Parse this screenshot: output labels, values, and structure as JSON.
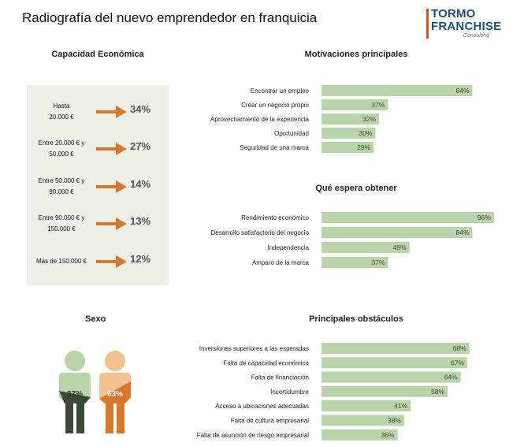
{
  "title": "Radiografía del nuevo emprendedor en franquicia",
  "logo": {
    "line1": "TORMO",
    "line2": "FRANCHISE",
    "line3": "Consulting"
  },
  "colors": {
    "bar": "#b9d4a8",
    "panel": "#ebf1e6",
    "arrow": "#d8782b",
    "female": "#d8782b",
    "female_light": "#f2c190",
    "male": "#b9d4a8",
    "male_dark": "#3b4a37"
  },
  "capacidad": {
    "title": "Capacidad Económica",
    "rows": [
      {
        "label": "Hasta\n20.000 €",
        "pct": "34%"
      },
      {
        "label": "Entre 20.000 € y\n50.000 €",
        "pct": "27%"
      },
      {
        "label": "Entre 50.000 € y\n90.000 €",
        "pct": "14%"
      },
      {
        "label": "Entre 90.000 € y\n150.000 €",
        "pct": "13%"
      },
      {
        "label": "Más de 150.000 €",
        "pct": "12%"
      }
    ]
  },
  "sexo": {
    "title": "Sexo",
    "male_pct": "37%",
    "female_pct": "63%"
  },
  "chart_data": [
    {
      "type": "bar",
      "orientation": "horizontal",
      "title": "Motivaciones principales",
      "categories": [
        "Encontrar un empleo",
        "Crear un negocio propio",
        "Aprovechamiento de la experiencia",
        "Oportunidad",
        "Seguridad de una marca"
      ],
      "values": [
        84,
        37,
        32,
        30,
        29
      ],
      "labels": [
        "84%",
        "37%",
        "32%",
        "30%",
        "29%"
      ],
      "xlim": [
        0,
        100
      ]
    },
    {
      "type": "bar",
      "orientation": "horizontal",
      "title": "Qué espera obtener",
      "categories": [
        "Rendimiento económico",
        "Desarrollo satisfactorio del negocio",
        "Independencia",
        "Amparo de la marca"
      ],
      "values": [
        96,
        84,
        49,
        37
      ],
      "labels": [
        "96%",
        "84%",
        "49%",
        "37%"
      ],
      "xlim": [
        0,
        100
      ]
    },
    {
      "type": "bar",
      "orientation": "horizontal",
      "title": "Principales obstáculos",
      "categories": [
        "Inversiones superiores a las esperadas",
        "Falta de capacidad económica",
        "Falta de financiación",
        "Incertidumbre",
        "Acceso a ubicaciones adecuadas",
        "Falta de cultura empresarial",
        "Falta de asunción de riesgo empresarial"
      ],
      "values": [
        68,
        67,
        64,
        58,
        41,
        38,
        35
      ],
      "labels": [
        "68%",
        "67%",
        "64%",
        "58%",
        "41%",
        "38%",
        "35%"
      ],
      "xlim": [
        0,
        100
      ]
    }
  ]
}
